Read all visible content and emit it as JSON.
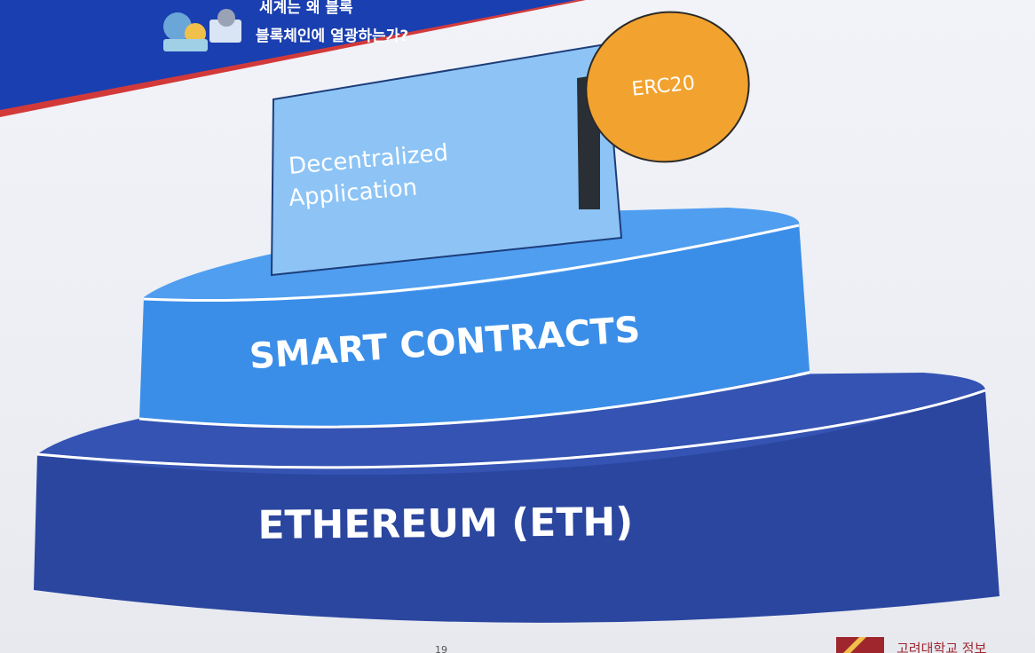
{
  "banner": {
    "title_line1": "세계는 왜 블록",
    "title_line2": "블록체인에 열광하는가?"
  },
  "diagram": {
    "top_card": {
      "line1": "Decentralized",
      "line2": "Application"
    },
    "badge": "ERC20",
    "middle_tier": "SMART CONTRACTS",
    "bottom_tier": "ETHEREUM (ETH)"
  },
  "footer": {
    "page_number": "19",
    "university": "고려대학교 정보"
  },
  "colors": {
    "banner_blue": "#1a3fb0",
    "banner_stripe": "#d23a3a",
    "card_fill": "#8dc4f5",
    "badge_fill": "#f2a22f",
    "middle_fill": "#3a8ee8",
    "middle_top": "#4f9ef0",
    "bottom_fill": "#2e4ca8",
    "bottom_top": "#3956b5"
  }
}
